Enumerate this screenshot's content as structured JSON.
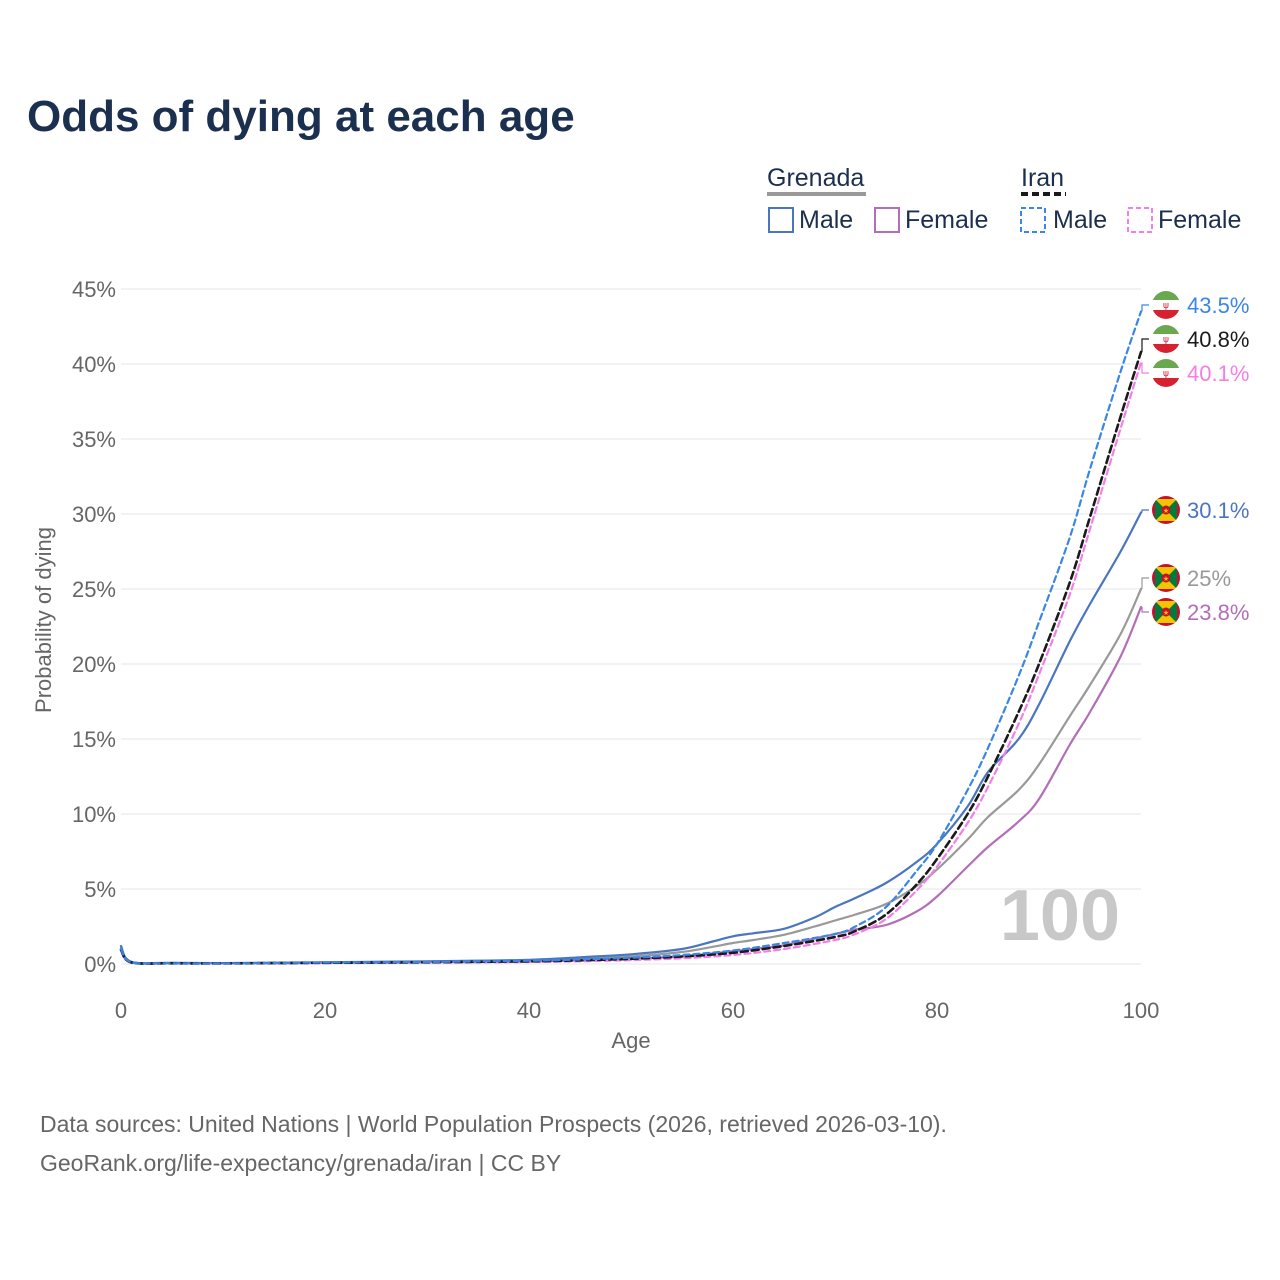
{
  "title": "Odds of dying at each age",
  "legend": {
    "grenada_label": "Grenada",
    "iran_label": "Iran",
    "male_label": "Male",
    "female_label": "Female"
  },
  "axes": {
    "x_label": "Age",
    "y_label": "Probability of dying"
  },
  "watermark": "100",
  "source_line_1": "Data sources: United Nations | World Population Prospects (2026, retrieved 2026-03-10).",
  "source_line_2": "GeoRank.org/life-expectancy/grenada/iran | CC BY",
  "colors": {
    "grenada_male": "#4a76bf",
    "grenada_female": "#b26fb8",
    "grenada_total": "#999999",
    "iran_male": "#3a86e8",
    "iran_female": "#f47ee8",
    "iran_total": "#1a1a1a",
    "title": "#1b2f4f",
    "grid": "#e6e6e6"
  },
  "chart_data": {
    "type": "line",
    "title": "Odds of dying at each age",
    "xlabel": "Age",
    "ylabel": "Probability of dying",
    "xlim": [
      0,
      100
    ],
    "ylim": [
      0,
      45
    ],
    "xticks": [
      0,
      20,
      40,
      60,
      80,
      100
    ],
    "yticks": [
      0,
      5,
      10,
      15,
      20,
      25,
      30,
      35,
      40,
      45
    ],
    "ytick_labels": [
      "0%",
      "5%",
      "10%",
      "15%",
      "20%",
      "25%",
      "30%",
      "35%",
      "40%",
      "45%"
    ],
    "series": [
      {
        "key": "grenada_male",
        "name": "Grenada Male",
        "country": "Grenada",
        "sex": "Male",
        "dashed": false,
        "end_label": "30.1%",
        "x": [
          0,
          1,
          5,
          10,
          20,
          30,
          40,
          45,
          50,
          55,
          58,
          60,
          62,
          65,
          68,
          70,
          72,
          75,
          78,
          80,
          83,
          85,
          88,
          90,
          93,
          95,
          98,
          100
        ],
        "y": [
          1.2,
          0.15,
          0.08,
          0.06,
          0.12,
          0.18,
          0.28,
          0.45,
          0.65,
          1.0,
          1.5,
          1.85,
          2.05,
          2.35,
          3.1,
          3.8,
          4.4,
          5.4,
          6.8,
          8.0,
          10.5,
          12.8,
          15.0,
          17.3,
          21.5,
          24.0,
          27.5,
          30.1
        ]
      },
      {
        "key": "grenada_total",
        "name": "Grenada Total",
        "country": "Grenada",
        "sex": "Total",
        "dashed": false,
        "end_label": "25%",
        "x": [
          0,
          1,
          5,
          10,
          20,
          30,
          40,
          45,
          50,
          55,
          58,
          60,
          62,
          65,
          68,
          70,
          72,
          75,
          78,
          80,
          83,
          85,
          88,
          90,
          93,
          95,
          98,
          100
        ],
        "y": [
          1.1,
          0.13,
          0.07,
          0.05,
          0.1,
          0.15,
          0.22,
          0.35,
          0.5,
          0.8,
          1.15,
          1.4,
          1.6,
          1.95,
          2.5,
          2.9,
          3.3,
          4.0,
          5.2,
          6.3,
          8.3,
          9.8,
          11.6,
          13.3,
          16.5,
          18.6,
          22.0,
          25.0
        ]
      },
      {
        "key": "grenada_female",
        "name": "Grenada Female",
        "country": "Grenada",
        "sex": "Female",
        "dashed": false,
        "end_label": "23.8%",
        "x": [
          0,
          1,
          5,
          10,
          20,
          30,
          40,
          45,
          50,
          55,
          58,
          60,
          62,
          65,
          68,
          70,
          72,
          75,
          78,
          80,
          83,
          85,
          88,
          90,
          93,
          95,
          98,
          100
        ],
        "y": [
          0.9,
          0.1,
          0.05,
          0.04,
          0.08,
          0.12,
          0.16,
          0.25,
          0.35,
          0.5,
          0.7,
          0.85,
          1.0,
          1.25,
          1.7,
          2.0,
          2.3,
          2.6,
          3.5,
          4.5,
          6.5,
          7.8,
          9.5,
          11.0,
          14.6,
          16.8,
          20.5,
          23.8
        ]
      },
      {
        "key": "iran_male",
        "name": "Iran Male",
        "country": "Iran",
        "sex": "Male",
        "dashed": true,
        "end_label": "43.5%",
        "x": [
          0,
          1,
          5,
          10,
          20,
          30,
          40,
          45,
          50,
          55,
          60,
          65,
          70,
          72,
          75,
          78,
          80,
          83,
          85,
          88,
          90,
          93,
          95,
          98,
          100
        ],
        "y": [
          1.0,
          0.12,
          0.05,
          0.04,
          0.1,
          0.14,
          0.22,
          0.3,
          0.42,
          0.6,
          0.9,
          1.4,
          2.0,
          2.5,
          3.8,
          6.2,
          8.0,
          11.6,
          14.4,
          19.2,
          22.8,
          28.4,
          33.0,
          39.5,
          43.5
        ]
      },
      {
        "key": "iran_total",
        "name": "Iran Total",
        "country": "Iran",
        "sex": "Total",
        "dashed": true,
        "end_label": "40.8%",
        "x": [
          0,
          1,
          5,
          10,
          20,
          30,
          40,
          45,
          50,
          55,
          60,
          65,
          70,
          72,
          75,
          78,
          80,
          83,
          85,
          88,
          90,
          93,
          95,
          98,
          100
        ],
        "y": [
          0.95,
          0.11,
          0.05,
          0.04,
          0.08,
          0.12,
          0.18,
          0.25,
          0.35,
          0.5,
          0.75,
          1.2,
          1.8,
          2.2,
          3.3,
          5.3,
          7.0,
          10.0,
          12.5,
          16.8,
          20.0,
          25.4,
          29.8,
          36.5,
          40.8
        ]
      },
      {
        "key": "iran_female",
        "name": "Iran Female",
        "country": "Iran",
        "sex": "Female",
        "dashed": true,
        "end_label": "40.1%",
        "x": [
          0,
          1,
          5,
          10,
          20,
          30,
          40,
          45,
          50,
          55,
          60,
          65,
          70,
          72,
          75,
          78,
          80,
          83,
          85,
          88,
          90,
          93,
          95,
          98,
          100
        ],
        "y": [
          0.9,
          0.1,
          0.04,
          0.03,
          0.06,
          0.09,
          0.13,
          0.18,
          0.26,
          0.38,
          0.6,
          1.0,
          1.6,
          2.0,
          3.0,
          4.9,
          6.5,
          9.4,
          11.8,
          16.0,
          19.3,
          24.6,
          29.0,
          35.7,
          40.1
        ]
      }
    ]
  }
}
